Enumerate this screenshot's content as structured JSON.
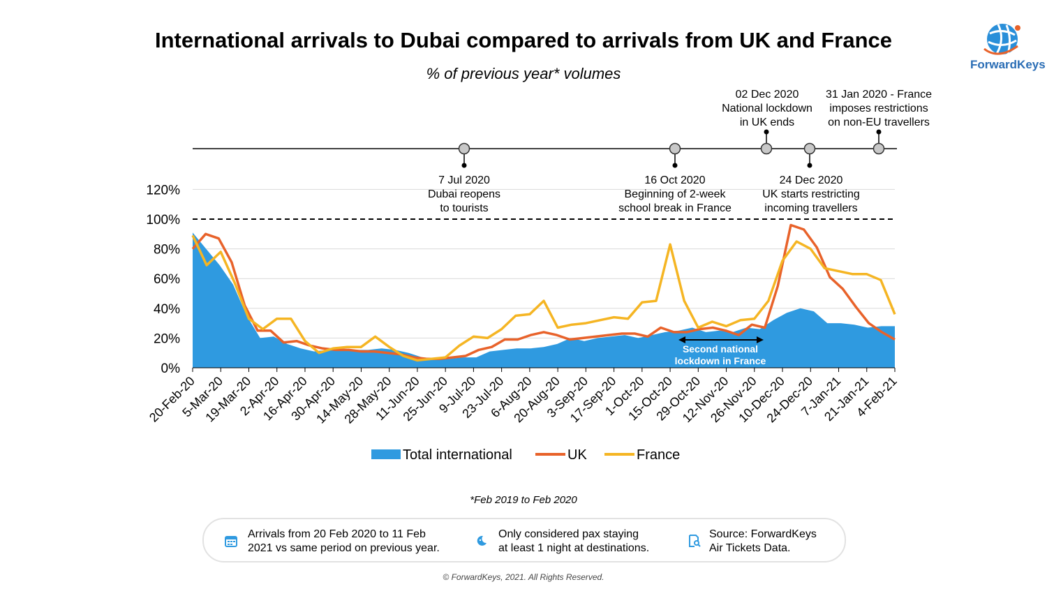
{
  "header": {
    "title": "International arrivals to Dubai compared to arrivals from UK and France",
    "subtitle": "% of previous year* volumes",
    "logo_text": "ForwardKeys"
  },
  "colors": {
    "total": "#2f9ae0",
    "uk": "#e8622a",
    "france": "#f5b523",
    "logo": "#2a6db5"
  },
  "chart_data": {
    "type": "area",
    "title": "International arrivals to Dubai compared to arrivals from UK and France",
    "subtitle": "% of previous year* volumes",
    "xlabel": "",
    "ylabel": "",
    "ylim": [
      0,
      120
    ],
    "yticks": [
      "0%",
      "20%",
      "40%",
      "60%",
      "80%",
      "100%",
      "120%"
    ],
    "grid": true,
    "legend_position": "bottom",
    "reference_line": {
      "value": 100,
      "style": "dashed"
    },
    "x_tick_labels": [
      "20-Feb-20",
      "5-Mar-20",
      "19-Mar-20",
      "2-Apr-20",
      "16-Apr-20",
      "30-Apr-20",
      "14-May-20",
      "28-May-20",
      "11-Jun-20",
      "25-Jun-20",
      "9-Jul-20",
      "23-Jul-20",
      "6-Aug-20",
      "20-Aug-20",
      "3-Sep-20",
      "17-Sep-20",
      "1-Oct-20",
      "15-Oct-20",
      "29-Oct-20",
      "12-Nov-20",
      "26-Nov-20",
      "10-Dec-20",
      "24-Dec-20",
      "7-Jan-21",
      "21-Jan-21",
      "4-Feb-21"
    ],
    "series": [
      {
        "name": "Total international",
        "type": "area",
        "values": [
          91,
          80,
          69,
          56,
          35,
          20,
          21,
          16,
          13,
          11,
          12,
          12,
          12,
          12,
          13,
          12,
          10,
          7,
          6,
          6,
          7,
          7,
          11,
          12,
          13,
          13,
          14,
          16,
          20,
          18,
          20,
          21,
          22,
          20,
          22,
          24,
          25,
          27,
          24,
          25,
          24,
          27,
          26,
          32,
          37,
          40,
          38,
          30,
          30,
          29,
          27,
          28,
          28
        ]
      },
      {
        "name": "UK",
        "type": "line",
        "values": [
          80,
          90,
          87,
          71,
          42,
          25,
          25,
          17,
          18,
          15,
          13,
          12,
          12,
          11,
          11,
          10,
          9,
          7,
          6,
          6,
          7,
          8,
          12,
          14,
          19,
          19,
          22,
          24,
          22,
          19,
          20,
          21,
          22,
          23,
          23,
          21,
          27,
          24,
          24,
          26,
          27,
          25,
          22,
          29,
          27,
          55,
          96,
          93,
          81,
          61,
          53,
          41,
          30,
          24,
          19
        ]
      },
      {
        "name": "France",
        "type": "line",
        "values": [
          89,
          69,
          78,
          57,
          33,
          26,
          33,
          33,
          18,
          10,
          13,
          14,
          14,
          21,
          14,
          8,
          5,
          6,
          7,
          15,
          21,
          20,
          26,
          35,
          36,
          45,
          27,
          29,
          30,
          32,
          34,
          33,
          44,
          45,
          83,
          45,
          27,
          31,
          28,
          32,
          33,
          45,
          72,
          85,
          80,
          67,
          65,
          63,
          63,
          59,
          36
        ]
      }
    ]
  },
  "events": [
    {
      "date": "7 Jul 2020",
      "text": [
        "Dubai reopens",
        "to tourists"
      ]
    },
    {
      "date": "16 Oct 2020",
      "text": [
        "Beginning of 2-week",
        "school break in France"
      ]
    },
    {
      "date": "02 Dec 2020",
      "text": [
        "National lockdown",
        "in UK ends"
      ]
    },
    {
      "date": "24 Dec 2020",
      "text": [
        "UK starts restricting",
        "incoming travellers"
      ]
    },
    {
      "date": "31 Jan 2020 - France",
      "text": [
        "imposes restrictions",
        "on non-EU travellers"
      ]
    }
  ],
  "annotation": {
    "text": [
      "Second national",
      "lockdown in France"
    ]
  },
  "legend": [
    "Total international",
    "UK",
    "France"
  ],
  "footnote": "*Feb 2019 to Feb 2020",
  "info": {
    "item1": {
      "line1": "Arrivals from 20 Feb 2020 to 11 Feb",
      "line2": "2021 vs same period on previous year.",
      "icon": "calendar-icon"
    },
    "item2": {
      "line1": "Only considered pax staying",
      "line2": "at least 1 night at destinations.",
      "icon": "moon-icon"
    },
    "item3": {
      "line1": "Source: ForwardKeys",
      "line2": "Air Tickets Data.",
      "icon": "document-search-icon"
    }
  },
  "copyright": "© ForwardKeys, 2021. All Rights Reserved."
}
